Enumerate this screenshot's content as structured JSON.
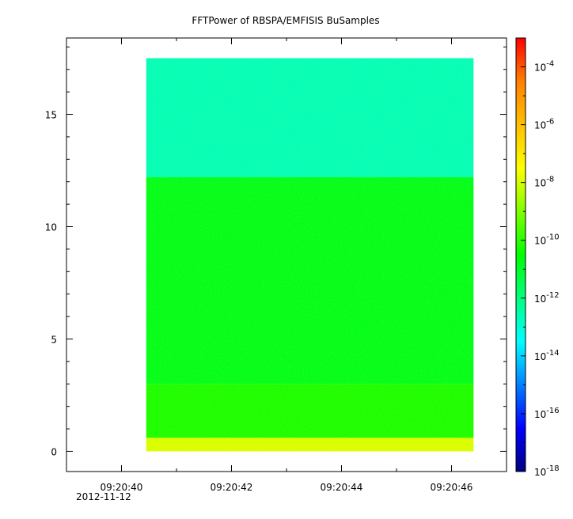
{
  "chart_data": {
    "type": "heatmap",
    "title": "FFTPower of RBSPA/EMFISIS  BuSamples",
    "xlabel": "",
    "ylabel": "",
    "x_tick_labels": [
      "09:20:40",
      "09:20:42",
      "09:20:44",
      "09:20:46"
    ],
    "x_tick_values_s": [
      40,
      42,
      44,
      46
    ],
    "x_date_label": "2012-11-12",
    "xlim_s": [
      39.0,
      47.0
    ],
    "x_data_range_s": [
      40.45,
      46.4
    ],
    "y_ticks": [
      0,
      5,
      10,
      15
    ],
    "ylim": [
      -0.9,
      18.4
    ],
    "y_data_range": [
      0,
      17.5
    ],
    "grid": false,
    "colorbar": {
      "scale": "log",
      "range": [
        1e-18,
        0.001
      ],
      "tick_exponents": [
        -18,
        -16,
        -14,
        -12,
        -10,
        -8,
        -6,
        -4
      ],
      "tick_base": "10",
      "colors": [
        "#000080",
        "#0000ff",
        "#0080ff",
        "#00ffff",
        "#00ff80",
        "#00ff00",
        "#80ff00",
        "#ffff00",
        "#ffc000",
        "#ff8000",
        "#ff0000"
      ]
    },
    "bands": [
      {
        "y_from": 12.2,
        "y_to": 17.5,
        "level_log10": -12.7
      },
      {
        "y_from": 3.0,
        "y_to": 12.2,
        "level_log10": -10.8
      },
      {
        "y_from": 0.6,
        "y_to": 3.0,
        "level_log10": -10.2
      },
      {
        "y_from": 0.0,
        "y_to": 0.6,
        "level_log10": -7.9
      }
    ]
  }
}
